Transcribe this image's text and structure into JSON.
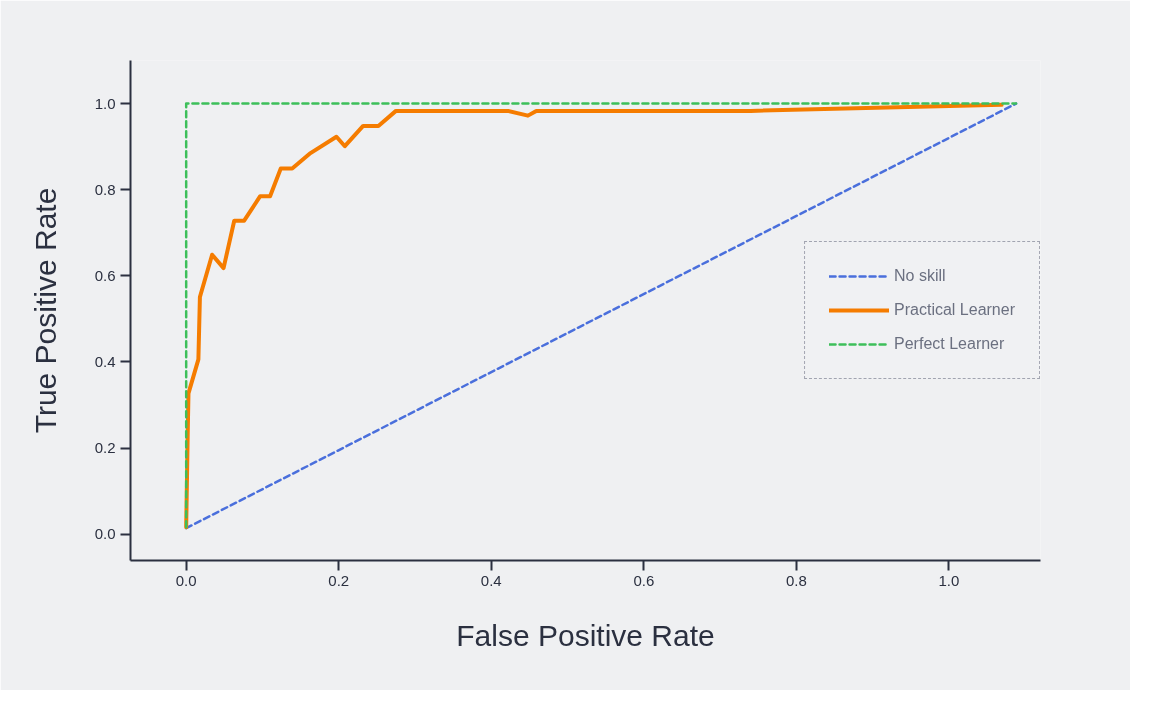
{
  "chart_data": {
    "type": "line",
    "xlabel": "False Positive Rate",
    "ylabel": "True Positive Rate",
    "xlim": [
      -0.073,
      1.12
    ],
    "ylim": [
      -0.061,
      1.1
    ],
    "xticks": [
      {
        "value": 0,
        "label": "0.0"
      },
      0.2,
      0.4,
      0.6,
      0.8,
      {
        "value": 1,
        "label": "1.0"
      }
    ],
    "yticks": [
      {
        "value": 0,
        "label": "0.0"
      },
      0.2,
      0.4,
      0.6,
      0.8,
      {
        "value": 1,
        "label": "1.0"
      }
    ],
    "grid": false,
    "legend": "right",
    "series": [
      {
        "name": "No skill",
        "color": "#4a6fdc",
        "line_style": "dashed",
        "x": [
          0.0,
          1.088
        ],
        "values": [
          0.014,
          1.0
        ]
      },
      {
        "name": "Practical Learner",
        "color": "#f57c00",
        "line_style": "solid",
        "x": [
          0.0,
          0.002,
          0.003,
          0.016,
          0.018,
          0.034,
          0.049,
          0.063,
          0.076,
          0.097,
          0.11,
          0.124,
          0.139,
          0.163,
          0.197,
          0.208,
          0.232,
          0.252,
          0.275,
          0.422,
          0.448,
          0.459,
          0.74,
          1.069
        ],
        "values": [
          0.016,
          0.233,
          0.327,
          0.406,
          0.551,
          0.649,
          0.618,
          0.728,
          0.728,
          0.785,
          0.785,
          0.849,
          0.849,
          0.885,
          0.923,
          0.901,
          0.948,
          0.948,
          0.983,
          0.983,
          0.972,
          0.983,
          0.983,
          0.997
        ]
      },
      {
        "name": "Perfect Learner",
        "color": "#3dbf5a",
        "line_style": "dashed",
        "x": [
          0.0,
          0.0,
          1.088
        ],
        "values": [
          0.016,
          1.0,
          1.0
        ]
      }
    ]
  }
}
